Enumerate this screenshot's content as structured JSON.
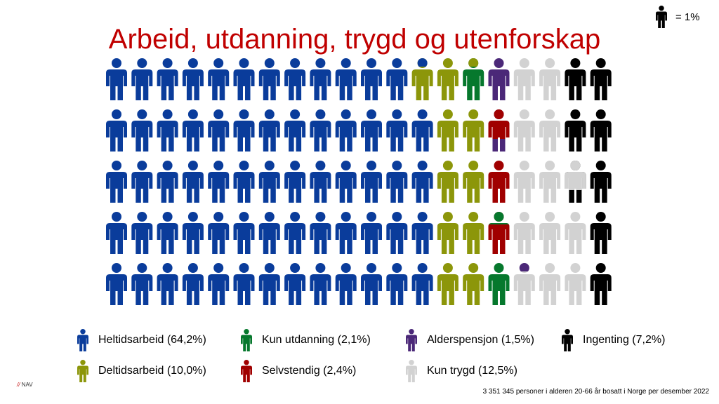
{
  "title": "Arbeid, utdanning, trygd og utenforskap",
  "scale": {
    "label": "= 1%",
    "color": "#000000"
  },
  "chart_data": {
    "type": "pictogram",
    "unit": "= 1%",
    "rows": 5,
    "columns": 20,
    "categories": [
      {
        "name": "Heltidsarbeid (64,2%)",
        "value": 64.2,
        "color": "#0a3c9b"
      },
      {
        "name": "Deltidsarbeid (10,0%)",
        "value": 10.0,
        "color": "#8c960a"
      },
      {
        "name": "Kun utdanning (2,1%)",
        "value": 2.1,
        "color": "#06782d"
      },
      {
        "name": "Selvstendig (2,4%)",
        "value": 2.4,
        "color": "#a00000"
      },
      {
        "name": "Alderspensjon (1,5%)",
        "value": 1.5,
        "color": "#4b2878"
      },
      {
        "name": "Kun trygd (12,5%)",
        "value": 12.5,
        "color": "#d2d2d2"
      },
      {
        "name": "Ingenting (7,2%)",
        "value": 7.2,
        "color": "#000000"
      }
    ]
  },
  "footnote": "3 351 345 personer i alderen 20-66 år bosatt i Norge per desember 2022",
  "logo": {
    "slashes": "//",
    "text": "NAV"
  }
}
